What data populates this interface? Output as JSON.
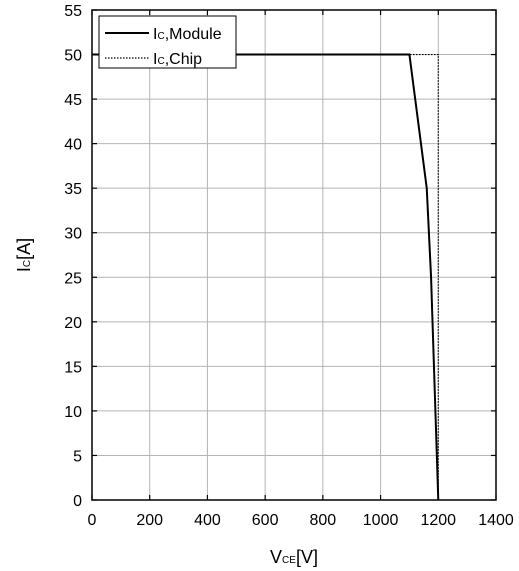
{
  "chart_data": {
    "type": "line",
    "title": "",
    "xlabel": {
      "main": "V",
      "sub": "CE",
      "unit": "[V]"
    },
    "ylabel": {
      "main": "I",
      "sub": "C",
      "unit": "[A]"
    },
    "xlim": [
      0,
      1400
    ],
    "ylim": [
      0,
      55
    ],
    "xticks": [
      0,
      200,
      400,
      600,
      800,
      1000,
      1200,
      1400
    ],
    "yticks": [
      0,
      5,
      10,
      15,
      20,
      25,
      30,
      35,
      40,
      45,
      50,
      55
    ],
    "grid": true,
    "legend_position": "top-left",
    "series": [
      {
        "name": "Module",
        "legend_main": "I",
        "legend_sub": "C",
        "legend_rest": ",Module",
        "style": "solid",
        "color": "#000000",
        "x": [
          0,
          1100,
          1120,
          1140,
          1160,
          1175,
          1190,
          1197,
          1200
        ],
        "y": [
          50,
          50,
          45,
          40,
          35,
          25,
          10,
          3,
          0
        ]
      },
      {
        "name": "Chip",
        "legend_main": "I",
        "legend_sub": "C",
        "legend_rest": ",Chip",
        "style": "dotted",
        "color": "#000000",
        "x": [
          0,
          1200,
          1200
        ],
        "y": [
          50,
          50,
          0
        ]
      }
    ]
  }
}
